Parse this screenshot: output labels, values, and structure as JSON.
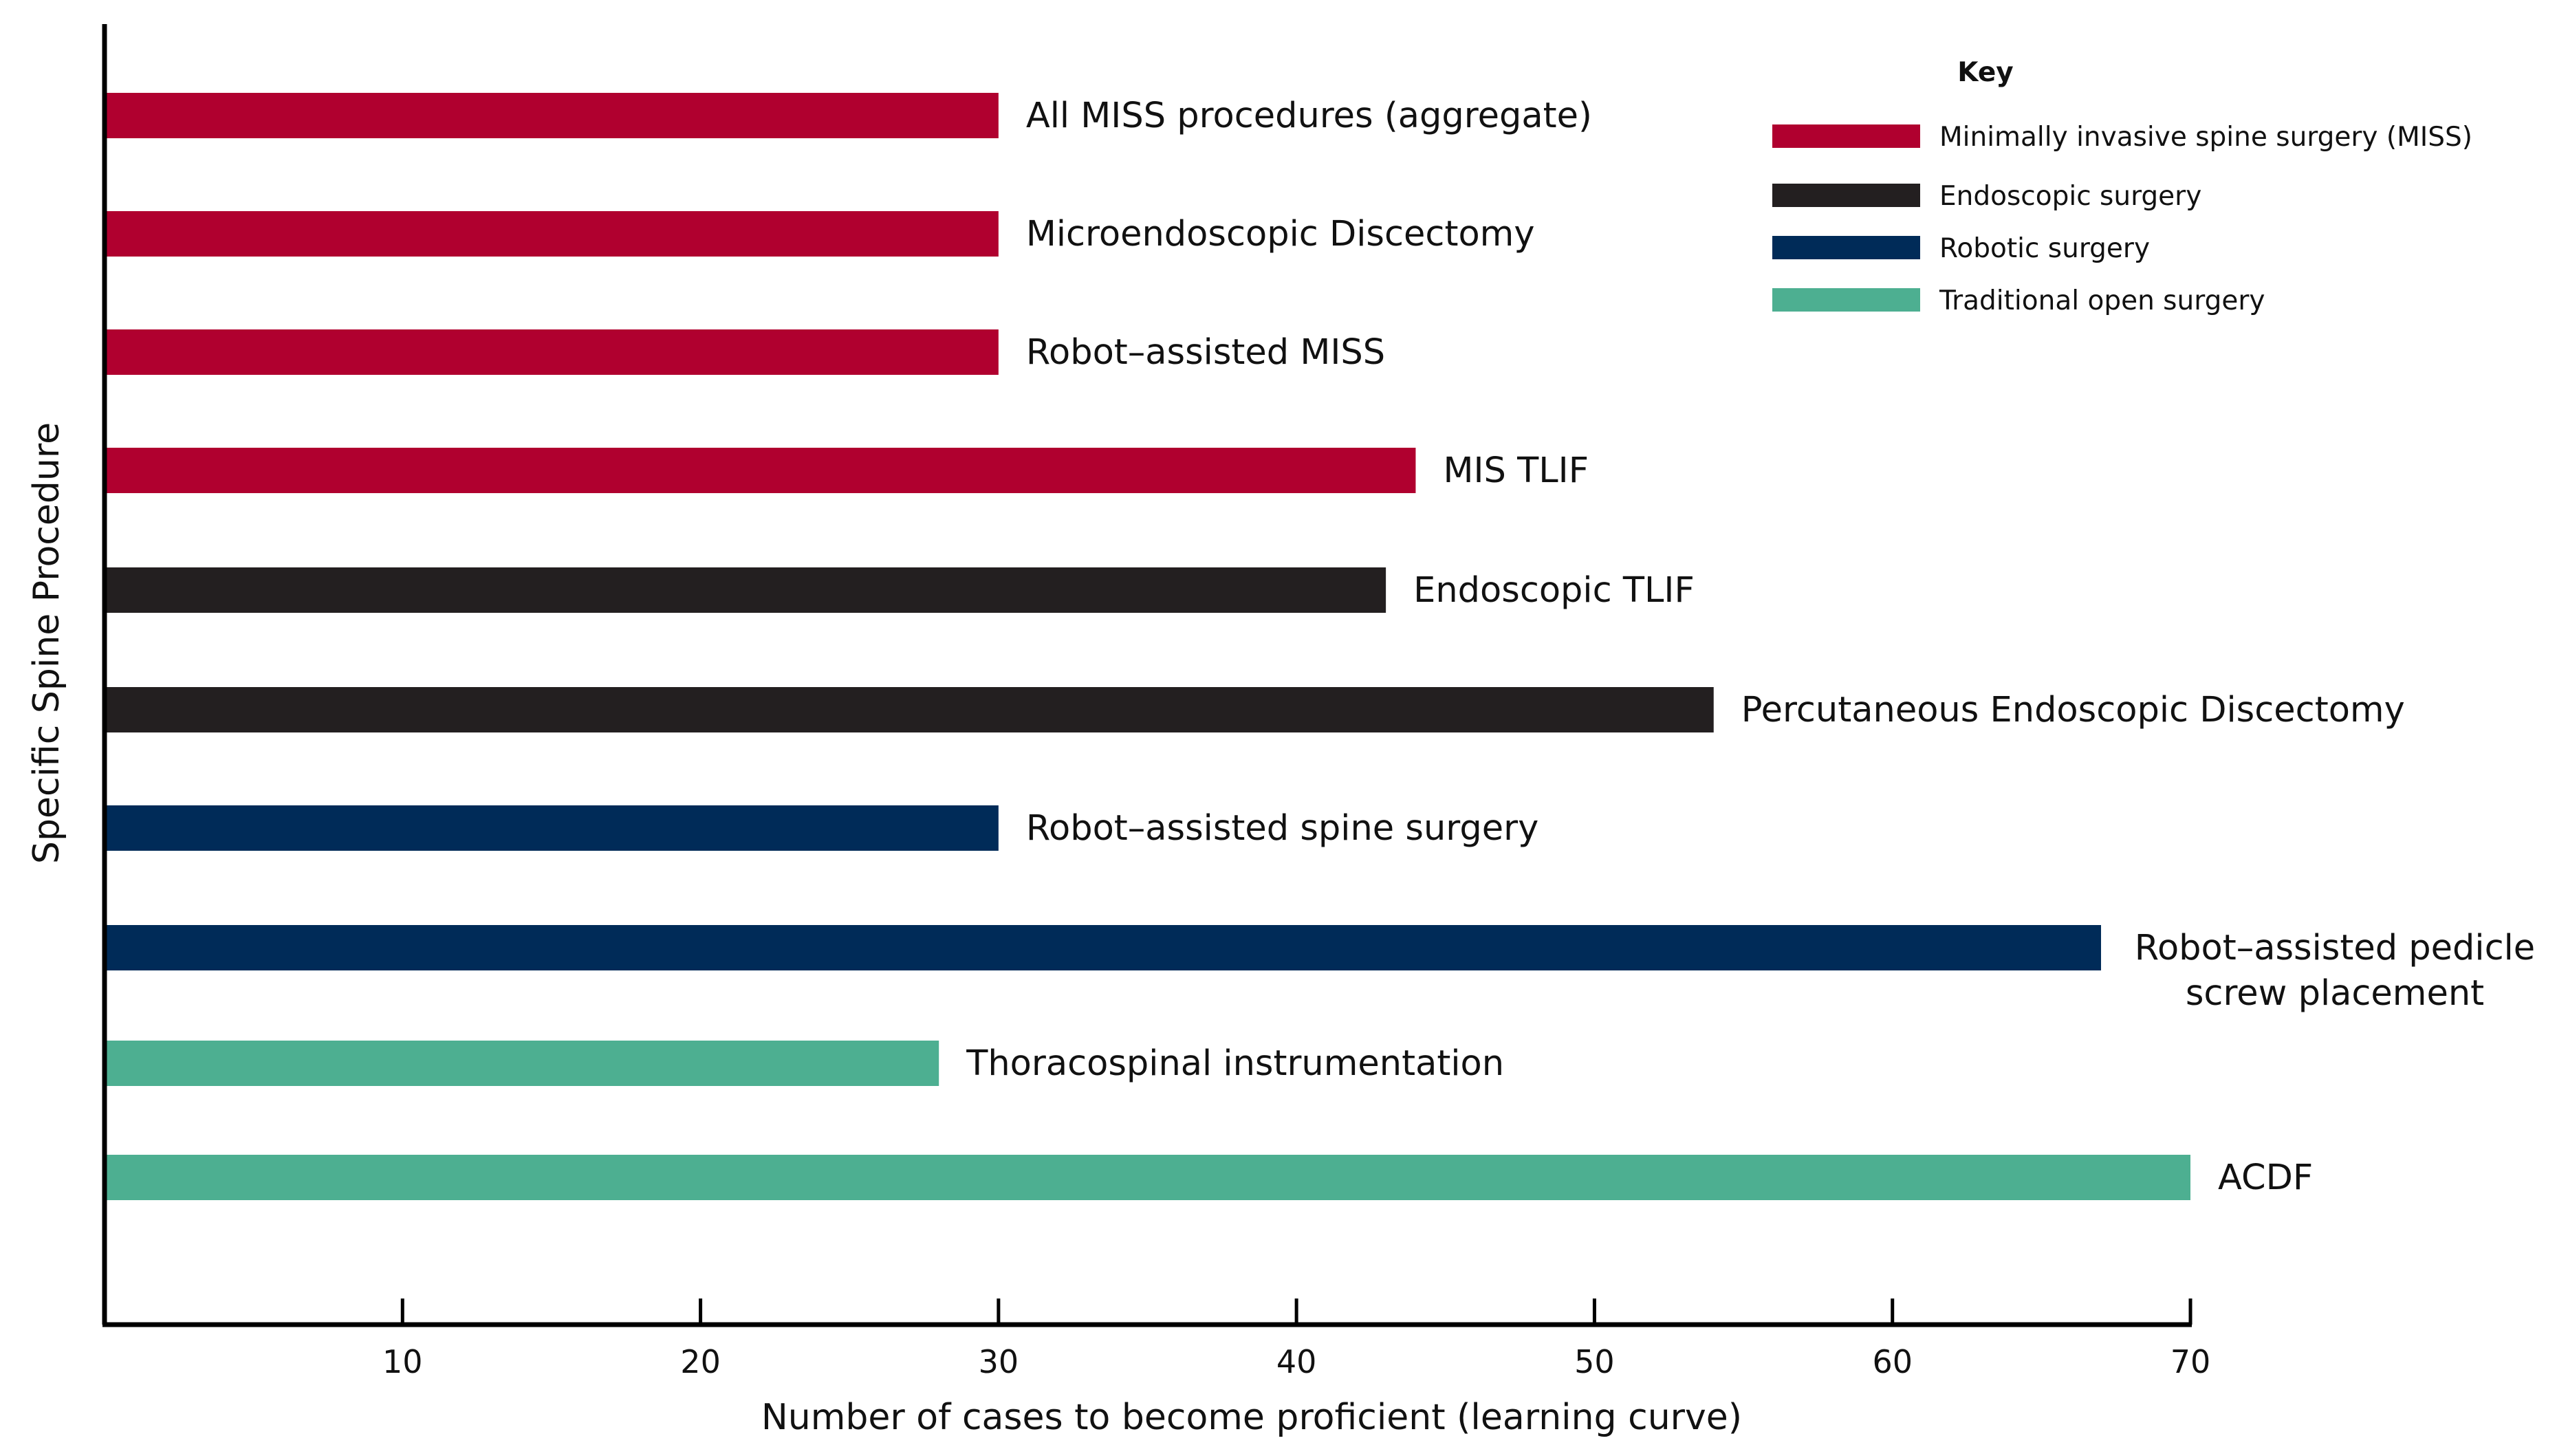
{
  "chart_data": {
    "type": "bar",
    "orientation": "horizontal",
    "title": "",
    "xlabel": "Number of cases to become proficient (learning curve)",
    "ylabel": "Specific Spine Procedure",
    "xlim": [
      0,
      70
    ],
    "xticks": [
      10,
      20,
      30,
      40,
      50,
      60,
      70
    ],
    "grid": false,
    "legend": {
      "title": "Key",
      "position": "top-right",
      "entries": [
        {
          "name": "Minimally invasive spine surgery (MISS)",
          "color": "#b0002f"
        },
        {
          "name": "Endoscopic surgery",
          "color": "#231f20"
        },
        {
          "name": "Robotic surgery",
          "color": "#002b58"
        },
        {
          "name": "Traditional open surgery",
          "color": "#4daf91"
        }
      ]
    },
    "bars": [
      {
        "label": "All MISS procedures (aggregate)",
        "value": 30,
        "group": 0
      },
      {
        "label": "Microendoscopic Discectomy",
        "value": 30,
        "group": 0
      },
      {
        "label": "Robot–assisted MISS",
        "value": 30,
        "group": 0
      },
      {
        "label": "MIS TLIF",
        "value": 44,
        "group": 0
      },
      {
        "label": "Endoscopic TLIF",
        "value": 43,
        "group": 1
      },
      {
        "label": "Percutaneous Endoscopic Discectomy",
        "value": 54,
        "group": 1
      },
      {
        "label": "Robot–assisted spine surgery",
        "value": 30,
        "group": 2
      },
      {
        "label": "Robot–assisted pedicle screw placement",
        "label_lines": [
          "Robot–assisted pedicle",
          "screw placement"
        ],
        "value": 67,
        "group": 2
      },
      {
        "label": "Thoracospinal instrumentation",
        "value": 28,
        "group": 3
      },
      {
        "label": "ACDF",
        "value": 70,
        "group": 3
      }
    ]
  }
}
